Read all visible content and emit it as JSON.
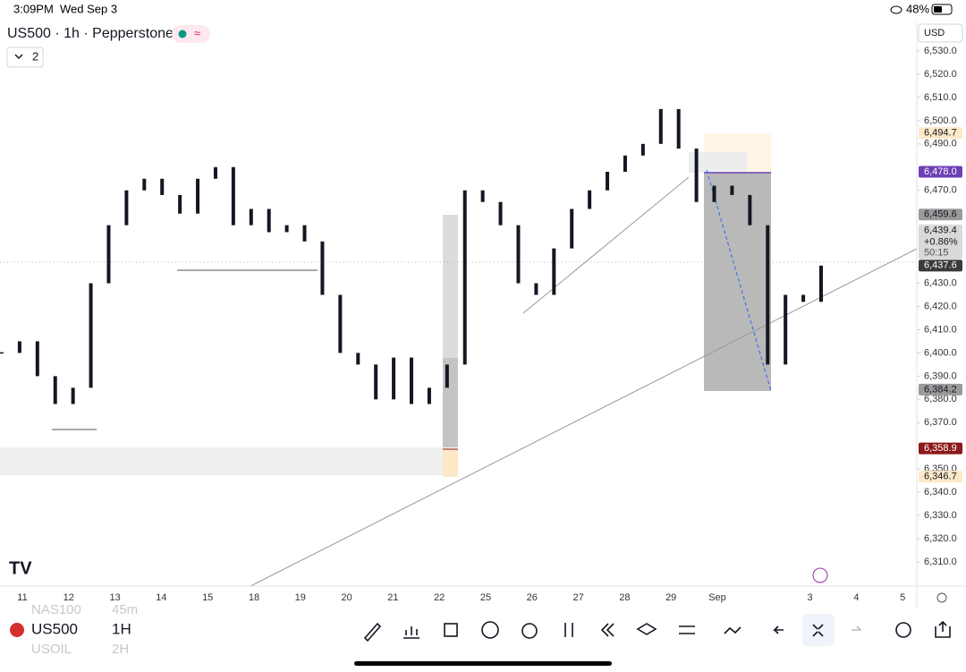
{
  "status_bar": {
    "time": "3:09PM",
    "date": "Wed Sep 3",
    "battery": "48%"
  },
  "header": {
    "symbol": "US500 · 1h · Pepperstone",
    "currency": "USD",
    "indicator_count": "2"
  },
  "chart_data": {
    "type": "candlestick",
    "color": "#131722",
    "ylim": [
      6299.6,
      6532.7
    ],
    "yticks": [
      {
        "value": 6310,
        "label": "6,310.0"
      },
      {
        "value": 6320,
        "label": "6,320.0"
      },
      {
        "value": 6330,
        "label": "6,330.0"
      },
      {
        "value": 6340,
        "label": "6,340.0"
      },
      {
        "value": 6350,
        "label": "6,350.0"
      },
      {
        "value": 6370,
        "label": "6,370.0"
      },
      {
        "value": 6380,
        "label": "6,380.0"
      },
      {
        "value": 6390,
        "label": "6,390.0"
      },
      {
        "value": 6400,
        "label": "6,400.0"
      },
      {
        "value": 6410,
        "label": "6,410.0"
      },
      {
        "value": 6420,
        "label": "6,420.0"
      },
      {
        "value": 6430,
        "label": "6,430.0"
      },
      {
        "value": 6470,
        "label": "6,470.0"
      },
      {
        "value": 6490,
        "label": "6,490.0"
      },
      {
        "value": 6500,
        "label": "6,500.0"
      },
      {
        "value": 6510,
        "label": "6,510.0"
      },
      {
        "value": 6520,
        "label": "6,520.0"
      },
      {
        "value": 6530,
        "label": "6,530.0"
      }
    ],
    "grid": false,
    "categories": [
      "11",
      "12",
      "13",
      "14",
      "15",
      "18",
      "19",
      "20",
      "21",
      "22",
      "25",
      "26",
      "27",
      "28",
      "29",
      "Sep",
      null,
      "3",
      "4",
      "5"
    ],
    "close": [
      6400,
      6405,
      6390,
      6378,
      6385,
      6430,
      6455,
      6470,
      6475,
      6468,
      6460,
      6475,
      6480,
      6455,
      6462,
      6452,
      6455,
      6448,
      6425,
      6400,
      6395,
      6380,
      6398,
      6378,
      6385,
      6395,
      6470,
      6465,
      6455,
      6430,
      6425,
      6445,
      6462,
      6470,
      6478,
      6485,
      6490,
      6505,
      6488,
      6465,
      6472,
      6468,
      6455,
      6395,
      6425,
      6422,
      6437.6
    ],
    "price_labels": [
      {
        "value": 6494.7,
        "label": "6,494.7",
        "color": "#fde9c8",
        "text_color": "#131722"
      },
      {
        "value": 6478.0,
        "label": "6,478.0",
        "color": "#6c3fb5",
        "text_color": "#ffffff"
      },
      {
        "value": 6459.6,
        "label": "6,459.6",
        "color": "#9a9a9a",
        "text_color": "#131722"
      },
      {
        "value": 6437.6,
        "label": "6,437.6",
        "color": "#3a3a3a",
        "text_color": "#ffffff"
      },
      {
        "value": 6384.2,
        "label": "6,384.2",
        "color": "#9a9a9a",
        "text_color": "#131722"
      },
      {
        "value": 6358.9,
        "label": "6,358.9",
        "color": "#8b1a1a",
        "text_color": "#ffffff"
      },
      {
        "value": 6346.7,
        "label": "6,346.7",
        "color": "#fde9c8",
        "text_color": "#131722"
      }
    ],
    "last_price": {
      "value": 6439.4,
      "label": "6,439.4",
      "change": "+0.86%",
      "countdown": "50:15"
    }
  },
  "bottom_bar": {
    "symbol": "US500",
    "interval": "1H",
    "prev_symbol": "NAS100",
    "prev_interval": "45m",
    "next_symbol": "USOIL",
    "next_interval": "2H"
  }
}
